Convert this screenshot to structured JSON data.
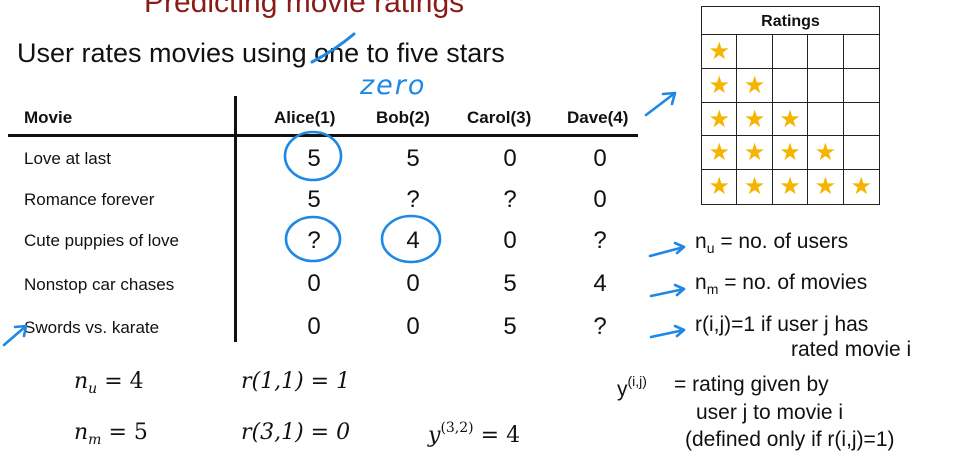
{
  "slide": {
    "title": "Predicting movie ratings",
    "subtitle_before": "User rates movies using ",
    "subtitle_struck": "one",
    "subtitle_after": " to five stars",
    "handwritten_correction": "zero"
  },
  "table": {
    "header_movie": "Movie",
    "users": [
      "Alice(1)",
      "Bob(2)",
      "Carol(3)",
      "Dave(4)"
    ],
    "rows": [
      {
        "movie": "Love at last",
        "ratings": [
          "5",
          "5",
          "0",
          "0"
        ]
      },
      {
        "movie": "Romance forever",
        "ratings": [
          "5",
          "?",
          "?",
          "0"
        ]
      },
      {
        "movie": "Cute puppies of love",
        "ratings": [
          "?",
          "4",
          "0",
          "?"
        ]
      },
      {
        "movie": "Nonstop car chases",
        "ratings": [
          "0",
          "0",
          "5",
          "4"
        ]
      },
      {
        "movie": "Swords vs. karate",
        "ratings": [
          "0",
          "0",
          "5",
          "?"
        ]
      }
    ]
  },
  "ratings_box": {
    "title": "Ratings",
    "star_glyph": "★",
    "star_color": "#f5b400",
    "star_counts": [
      1,
      2,
      3,
      4,
      5
    ]
  },
  "notes": {
    "nu": {
      "base": "n",
      "sub": "u",
      "text": "= no. of users"
    },
    "nm": {
      "base": "n",
      "sub": "m",
      "text": "= no. of movies"
    },
    "r_line1": "r(i,j)=1 if user j has",
    "r_line2": "rated movie i",
    "y_base": "y",
    "y_sup": "(i,j)",
    "y_line1": "= rating given by",
    "y_line2": "user j to movie i",
    "y_line3": "(defined only if r(i,j)=1)"
  },
  "math": {
    "nu": {
      "base": "n",
      "sub": "u",
      "rhs": "= 4"
    },
    "nm": {
      "base": "n",
      "sub": "m",
      "rhs": "= 5"
    },
    "r11": "r(1,1) = 1",
    "r31": "r(3,1) = 0",
    "y32": {
      "base": "y",
      "sup": "(3,2)",
      "rhs": "= 4"
    }
  },
  "annotation_color": "#1e88e5"
}
